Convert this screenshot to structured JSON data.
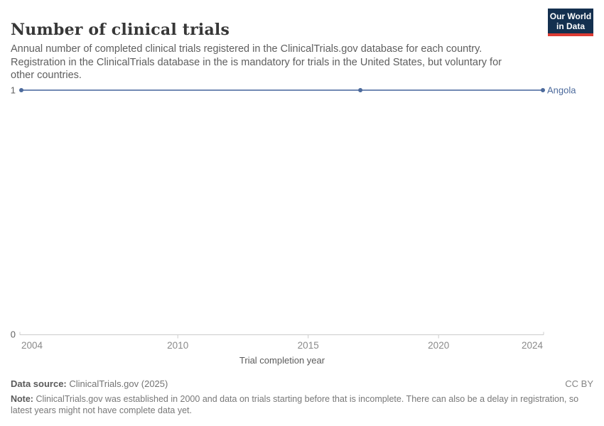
{
  "header": {
    "title": "Number of clinical trials",
    "subtitle": "Annual number of completed clinical trials registered in the ClinicalTrials.gov database for each country. Registration in the ClinicalTrials database in the is mandatory for trials in the United States, but voluntary for other countries.",
    "logo": {
      "line1": "Our World",
      "line2": "in Data"
    }
  },
  "chart_data": {
    "type": "line",
    "title": "Number of clinical trials",
    "xlabel": "Trial completion year",
    "ylabel": "",
    "xlim": [
      2004,
      2024
    ],
    "ylim": [
      0,
      1
    ],
    "x_ticks": [
      2004,
      2010,
      2015,
      2020,
      2024
    ],
    "y_ticks": [
      0,
      1
    ],
    "grid": false,
    "legend_position": "end-of-line",
    "series": [
      {
        "name": "Angola",
        "color": "#4C6A9C",
        "line_color": "#7289B3",
        "x": [
          2004,
          2017,
          2024
        ],
        "values": [
          1,
          1,
          1
        ]
      }
    ]
  },
  "colors": {
    "accent_blue": "#4C6A9C",
    "logo_navy": "#14304F",
    "logo_red": "#DC3B33",
    "axis_line": "#cccccc",
    "tick_label": "#8a8a8a",
    "y_label": "#616161",
    "axis_title": "#5b5b5b"
  },
  "footer": {
    "datasource_label": "Data source:",
    "datasource_value": "ClinicalTrials.gov (2025)",
    "license": "CC BY",
    "note_label": "Note:",
    "note_text": "ClinicalTrials.gov was established in 2000 and data on trials starting before that is incomplete. There can also be a delay in registration, so latest years might not have complete data yet."
  }
}
